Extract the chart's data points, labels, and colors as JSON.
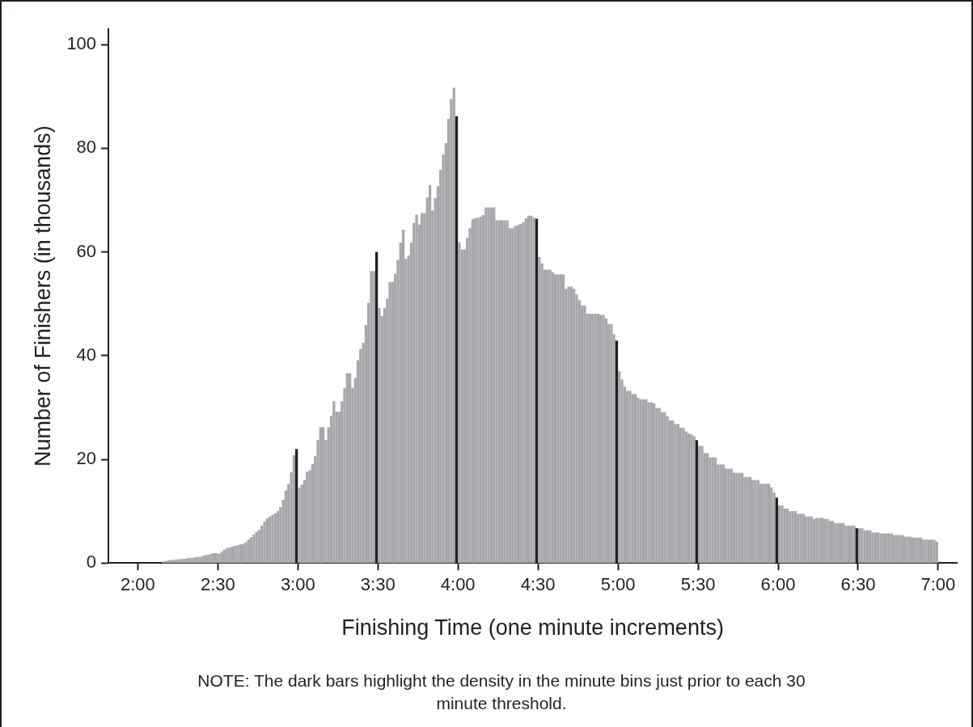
{
  "chart_data": {
    "type": "histogram",
    "xlabel": "Finishing Time (one minute increments)",
    "ylabel": "Number of Finishers (in thousands)",
    "annotations": [
      "NOTE: The dark bars highlight the density in the minute bins just prior to each 30 minute threshold."
    ],
    "bins": [
      129,
      130,
      131,
      132,
      133,
      134,
      135,
      136,
      137,
      138,
      139,
      140,
      141,
      142,
      143,
      144,
      145,
      146,
      147,
      148,
      149,
      150,
      151,
      152,
      153,
      154,
      155,
      156,
      157,
      158,
      159,
      160,
      161,
      162,
      163,
      164,
      165,
      166,
      167,
      168,
      169,
      170,
      171,
      172,
      173,
      174,
      175,
      176,
      177,
      178,
      179,
      180,
      181,
      182,
      183,
      184,
      185,
      186,
      187,
      188,
      189,
      190,
      191,
      192,
      193,
      194,
      195,
      196,
      197,
      198,
      199,
      200,
      201,
      202,
      203,
      204,
      205,
      206,
      207,
      208,
      209,
      210,
      211,
      212,
      213,
      214,
      215,
      216,
      217,
      218,
      219,
      220,
      221,
      222,
      223,
      224,
      225,
      226,
      227,
      228,
      229,
      230,
      231,
      232,
      233,
      234,
      235,
      236,
      237,
      238,
      239,
      240,
      241,
      242,
      243,
      244,
      245,
      246,
      247,
      248,
      249,
      250,
      251,
      252,
      253,
      254,
      255,
      256,
      257,
      258,
      259,
      260,
      261,
      262,
      263,
      264,
      265,
      266,
      267,
      268,
      269,
      270,
      271,
      272,
      273,
      274,
      275,
      276,
      277,
      278,
      279,
      280,
      281,
      282,
      283,
      284,
      285,
      286,
      287,
      288,
      289,
      290,
      291,
      292,
      293,
      294,
      295,
      296,
      297,
      298,
      299,
      300,
      301,
      302,
      303,
      304,
      305,
      306,
      307,
      308,
      309,
      310,
      311,
      312,
      313,
      314,
      315,
      316,
      317,
      318,
      319,
      320,
      321,
      322,
      323,
      324,
      325,
      326,
      327,
      328,
      329,
      330,
      331,
      332,
      333,
      334,
      335,
      336,
      337,
      338,
      339,
      340,
      341,
      342,
      343,
      344,
      345,
      346,
      347,
      348,
      349,
      350,
      351,
      352,
      353,
      354,
      355,
      356,
      357,
      358,
      359,
      360,
      361,
      362,
      363,
      364,
      365,
      366,
      367,
      368,
      369,
      370,
      371,
      372,
      373,
      374,
      375,
      376,
      377,
      378,
      379,
      380,
      381,
      382,
      383,
      384,
      385,
      386,
      387,
      388,
      389,
      390,
      391,
      392,
      393,
      394,
      395,
      396,
      397,
      398,
      399,
      400,
      401,
      402,
      403,
      404,
      405,
      406,
      407,
      408,
      409,
      410,
      411,
      412,
      413,
      414,
      415,
      416,
      417,
      418,
      419,
      420
    ],
    "values": [
      0.3,
      0.4,
      0.5,
      0.6,
      0.6,
      0.7,
      0.7,
      0.8,
      0.8,
      0.9,
      1.0,
      1.0,
      1.1,
      1.2,
      1.2,
      1.4,
      1.5,
      1.6,
      1.8,
      1.9,
      1.9,
      1.8,
      2.2,
      2.6,
      2.9,
      3.0,
      3.2,
      3.3,
      3.4,
      3.6,
      3.7,
      4.0,
      4.5,
      5.0,
      5.5,
      6.0,
      6.4,
      7.2,
      8.0,
      8.6,
      9.0,
      9.3,
      9.6,
      10.0,
      10.8,
      12.2,
      14.0,
      15.2,
      17.5,
      20.8,
      22.0,
      14.5,
      15.1,
      16.0,
      17.6,
      17.9,
      19.1,
      20.6,
      23.7,
      26.2,
      26.2,
      23.7,
      26.2,
      28.4,
      31.2,
      29.2,
      29.2,
      31.2,
      33.8,
      36.6,
      36.6,
      33.8,
      35.7,
      39.1,
      41.3,
      42.5,
      45.9,
      50.2,
      56.3,
      56.3,
      60.0,
      49.2,
      47.6,
      49.2,
      51.0,
      54.2,
      54.2,
      55.8,
      58.5,
      61.8,
      64.3,
      58.7,
      59.3,
      61.8,
      65.6,
      67.2,
      65.3,
      67.5,
      67.5,
      70.5,
      72.9,
      68.0,
      70.4,
      72.7,
      75.9,
      78.8,
      81.0,
      85.7,
      89.5,
      91.7,
      86.2,
      61.9,
      60.5,
      60.5,
      62.7,
      64.6,
      66.3,
      66.5,
      66.6,
      66.8,
      67.1,
      68.6,
      68.6,
      68.6,
      68.6,
      66.1,
      66.1,
      66.1,
      66.1,
      66.1,
      64.6,
      64.6,
      65.0,
      65.2,
      65.4,
      65.7,
      66.5,
      67.0,
      67.0,
      66.6,
      66.4,
      59.0,
      57.8,
      56.6,
      56.6,
      56.6,
      56.1,
      55.7,
      55.7,
      55.7,
      55.7,
      52.9,
      53.3,
      53.3,
      52.9,
      51.8,
      50.7,
      49.7,
      49.7,
      48.1,
      48.1,
      48.1,
      48.1,
      48.1,
      47.9,
      47.9,
      47.2,
      46.1,
      46.1,
      44.1,
      42.9,
      37.0,
      35.4,
      34.0,
      33.2,
      33.2,
      32.6,
      32.6,
      31.9,
      31.6,
      31.6,
      31.6,
      31.0,
      31.0,
      30.8,
      29.9,
      29.9,
      29.1,
      29.1,
      28.3,
      27.5,
      27.5,
      26.8,
      26.8,
      26.1,
      26.1,
      25.4,
      25.0,
      24.8,
      24.5,
      23.7,
      22.6,
      22.6,
      21.2,
      21.2,
      20.4,
      20.4,
      20.4,
      19.0,
      19.0,
      19.0,
      18.2,
      18.2,
      18.2,
      17.4,
      17.4,
      17.4,
      17.4,
      16.6,
      16.6,
      16.6,
      16.0,
      16.0,
      16.0,
      15.3,
      15.3,
      15.3,
      15.3,
      14.6,
      13.6,
      12.6,
      11.1,
      11.1,
      10.5,
      10.5,
      10.0,
      10.0,
      10.0,
      9.5,
      9.5,
      9.5,
      9.0,
      9.0,
      9.0,
      8.5,
      8.7,
      8.7,
      8.7,
      8.5,
      8.5,
      8.1,
      8.1,
      7.7,
      7.7,
      7.7,
      7.7,
      7.2,
      7.2,
      7.2,
      7.2,
      6.7,
      6.7,
      6.7,
      6.3,
      6.3,
      6.3,
      5.9,
      5.9,
      5.9,
      5.7,
      5.7,
      5.7,
      5.7,
      5.7,
      5.4,
      5.4,
      5.4,
      5.4,
      5.1,
      5.1,
      5.1,
      4.9,
      4.9,
      4.9,
      4.9,
      4.5,
      4.5,
      4.5,
      4.5,
      4.5,
      4.1
    ],
    "colors": [
      "#a7a8ac",
      "#a7a8ac",
      "#a7a8ac",
      "#a7a8ac",
      "#a7a8ac",
      "#a7a8ac",
      "#a7a8ac",
      "#a7a8ac",
      "#a7a8ac",
      "#a7a8ac",
      "#a7a8ac",
      "#a7a8ac",
      "#a7a8ac",
      "#a7a8ac",
      "#a7a8ac",
      "#a7a8ac",
      "#a7a8ac",
      "#a7a8ac",
      "#a7a8ac",
      "#a7a8ac",
      "#a7a8ac",
      "#a7a8ac",
      "#a7a8ac",
      "#a7a8ac",
      "#a7a8ac",
      "#a7a8ac",
      "#a7a8ac",
      "#a7a8ac",
      "#a7a8ac",
      "#a7a8ac",
      "#a7a8ac",
      "#a7a8ac",
      "#a7a8ac",
      "#a7a8ac",
      "#a7a8ac",
      "#a7a8ac",
      "#a7a8ac",
      "#a7a8ac",
      "#a7a8ac",
      "#a7a8ac",
      "#a7a8ac",
      "#a7a8ac",
      "#a7a8ac",
      "#a7a8ac",
      "#a7a8ac",
      "#a7a8ac",
      "#a7a8ac",
      "#a7a8ac",
      "#a7a8ac",
      "#a7a8ac",
      "#231f20",
      "#a7a8ac",
      "#a7a8ac",
      "#a7a8ac",
      "#a7a8ac",
      "#a7a8ac",
      "#a7a8ac",
      "#a7a8ac",
      "#a7a8ac",
      "#a7a8ac",
      "#a7a8ac",
      "#a7a8ac",
      "#a7a8ac",
      "#a7a8ac",
      "#a7a8ac",
      "#a7a8ac",
      "#a7a8ac",
      "#a7a8ac",
      "#a7a8ac",
      "#a7a8ac",
      "#a7a8ac",
      "#a7a8ac",
      "#a7a8ac",
      "#a7a8ac",
      "#a7a8ac",
      "#a7a8ac",
      "#a7a8ac",
      "#a7a8ac",
      "#a7a8ac",
      "#a7a8ac",
      "#231f20",
      "#a7a8ac",
      "#a7a8ac",
      "#a7a8ac",
      "#a7a8ac",
      "#a7a8ac",
      "#a7a8ac",
      "#a7a8ac",
      "#a7a8ac",
      "#a7a8ac",
      "#a7a8ac",
      "#a7a8ac",
      "#a7a8ac",
      "#a7a8ac",
      "#a7a8ac",
      "#a7a8ac",
      "#a7a8ac",
      "#a7a8ac",
      "#a7a8ac",
      "#a7a8ac",
      "#a7a8ac",
      "#a7a8ac",
      "#a7a8ac",
      "#a7a8ac",
      "#a7a8ac",
      "#a7a8ac",
      "#a7a8ac",
      "#a7a8ac",
      "#a7a8ac",
      "#a7a8ac",
      "#231f20",
      "#a7a8ac",
      "#a7a8ac",
      "#a7a8ac",
      "#a7a8ac",
      "#a7a8ac",
      "#a7a8ac",
      "#a7a8ac",
      "#a7a8ac",
      "#a7a8ac",
      "#a7a8ac",
      "#a7a8ac",
      "#a7a8ac",
      "#a7a8ac",
      "#a7a8ac",
      "#a7a8ac",
      "#a7a8ac",
      "#a7a8ac",
      "#a7a8ac",
      "#a7a8ac",
      "#a7a8ac",
      "#a7a8ac",
      "#a7a8ac",
      "#a7a8ac",
      "#a7a8ac",
      "#a7a8ac",
      "#a7a8ac",
      "#a7a8ac",
      "#a7a8ac",
      "#a7a8ac",
      "#231f20",
      "#a7a8ac",
      "#a7a8ac",
      "#a7a8ac",
      "#a7a8ac",
      "#a7a8ac",
      "#a7a8ac",
      "#a7a8ac",
      "#a7a8ac",
      "#a7a8ac",
      "#a7a8ac",
      "#a7a8ac",
      "#a7a8ac",
      "#a7a8ac",
      "#a7a8ac",
      "#a7a8ac",
      "#a7a8ac",
      "#a7a8ac",
      "#a7a8ac",
      "#a7a8ac",
      "#a7a8ac",
      "#a7a8ac",
      "#a7a8ac",
      "#a7a8ac",
      "#a7a8ac",
      "#a7a8ac",
      "#a7a8ac",
      "#a7a8ac",
      "#a7a8ac",
      "#a7a8ac",
      "#231f20",
      "#a7a8ac",
      "#a7a8ac",
      "#a7a8ac",
      "#a7a8ac",
      "#a7a8ac",
      "#a7a8ac",
      "#a7a8ac",
      "#a7a8ac",
      "#a7a8ac",
      "#a7a8ac",
      "#a7a8ac",
      "#a7a8ac",
      "#a7a8ac",
      "#a7a8ac",
      "#a7a8ac",
      "#a7a8ac",
      "#a7a8ac",
      "#a7a8ac",
      "#a7a8ac",
      "#a7a8ac",
      "#a7a8ac",
      "#a7a8ac",
      "#a7a8ac",
      "#a7a8ac",
      "#a7a8ac",
      "#a7a8ac",
      "#a7a8ac",
      "#a7a8ac",
      "#a7a8ac",
      "#231f20",
      "#a7a8ac",
      "#a7a8ac",
      "#a7a8ac",
      "#a7a8ac",
      "#a7a8ac",
      "#a7a8ac",
      "#a7a8ac",
      "#a7a8ac",
      "#a7a8ac",
      "#a7a8ac",
      "#a7a8ac",
      "#a7a8ac",
      "#a7a8ac",
      "#a7a8ac",
      "#a7a8ac",
      "#a7a8ac",
      "#a7a8ac",
      "#a7a8ac",
      "#a7a8ac",
      "#a7a8ac",
      "#a7a8ac",
      "#a7a8ac",
      "#a7a8ac",
      "#a7a8ac",
      "#a7a8ac",
      "#a7a8ac",
      "#a7a8ac",
      "#a7a8ac",
      "#a7a8ac",
      "#231f20",
      "#a7a8ac",
      "#a7a8ac",
      "#a7a8ac",
      "#a7a8ac",
      "#a7a8ac",
      "#a7a8ac",
      "#a7a8ac",
      "#a7a8ac",
      "#a7a8ac",
      "#a7a8ac",
      "#a7a8ac",
      "#a7a8ac",
      "#a7a8ac",
      "#a7a8ac",
      "#a7a8ac",
      "#a7a8ac",
      "#a7a8ac",
      "#a7a8ac",
      "#a7a8ac",
      "#a7a8ac",
      "#a7a8ac",
      "#a7a8ac",
      "#a7a8ac",
      "#a7a8ac",
      "#a7a8ac",
      "#a7a8ac",
      "#a7a8ac",
      "#a7a8ac",
      "#a7a8ac",
      "#231f20",
      "#a7a8ac",
      "#a7a8ac",
      "#a7a8ac",
      "#a7a8ac",
      "#a7a8ac",
      "#a7a8ac",
      "#a7a8ac",
      "#a7a8ac",
      "#a7a8ac",
      "#a7a8ac",
      "#a7a8ac",
      "#a7a8ac",
      "#a7a8ac",
      "#a7a8ac",
      "#a7a8ac",
      "#a7a8ac",
      "#a7a8ac",
      "#a7a8ac",
      "#a7a8ac",
      "#a7a8ac",
      "#a7a8ac",
      "#a7a8ac",
      "#a7a8ac",
      "#a7a8ac",
      "#a7a8ac",
      "#a7a8ac",
      "#a7a8ac",
      "#a7a8ac",
      "#a7a8ac",
      "#a7a8ac"
    ],
    "xlim": [
      109,
      427
    ],
    "xticks": [
      {
        "value": 120,
        "label": "2:00"
      },
      {
        "value": 150,
        "label": "2:30"
      },
      {
        "value": 180,
        "label": "3:00"
      },
      {
        "value": 210,
        "label": "3:30"
      },
      {
        "value": 240,
        "label": "4:00"
      },
      {
        "value": 270,
        "label": "4:30"
      },
      {
        "value": 300,
        "label": "5:00"
      },
      {
        "value": 330,
        "label": "5:30"
      },
      {
        "value": 360,
        "label": "6:00"
      },
      {
        "value": 390,
        "label": "6:30"
      },
      {
        "value": 420,
        "label": "7:00"
      }
    ],
    "ylim": [
      0,
      103
    ],
    "yticks": [
      0,
      20,
      40,
      60,
      80,
      100
    ]
  }
}
